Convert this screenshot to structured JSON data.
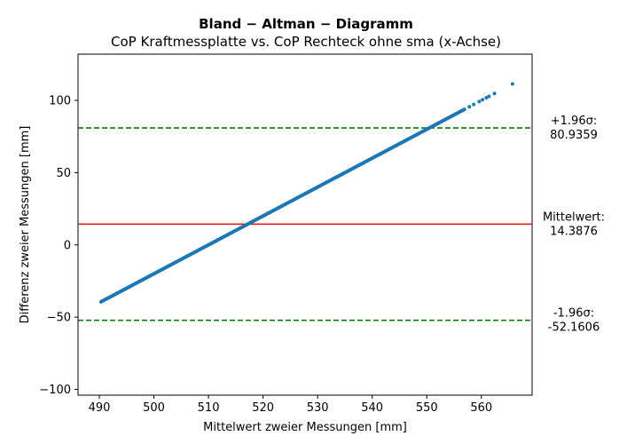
{
  "chart_data": {
    "type": "scatter",
    "title": "Bland − Altman − Diagramm",
    "subtitle": "CoP Kraftmessplatte vs. CoP Rechteck ohne sma (x-Achse)",
    "xlabel": "Mittelwert zweier Messungen [mm]",
    "ylabel": "Differenz zweier Messungen [mm]",
    "xlim": [
      486.1,
      569.3
    ],
    "ylim": [
      -104,
      132
    ],
    "xticks": [
      "490",
      "500",
      "510",
      "520",
      "530",
      "540",
      "550",
      "560"
    ],
    "yticks": [
      "100",
      "50",
      "0",
      "−50",
      "−100"
    ],
    "grid": false,
    "point_color": "#1f77b4",
    "series": [
      {
        "linear_fit": {
          "slope": 2.0,
          "x_at_zero_diff": 510.0
        },
        "x_range": [
          490.3,
          565.7
        ],
        "sparse_outliers": [
          [
            557.8,
            95.6
          ],
          [
            558.6,
            97.2
          ],
          [
            559.6,
            99.2
          ],
          [
            560.2,
            100.4
          ],
          [
            560.9,
            101.8
          ],
          [
            561.4,
            102.8
          ],
          [
            562.4,
            104.8
          ],
          [
            565.7,
            111.4
          ]
        ]
      }
    ],
    "reference_lines": [
      {
        "label": "+1.96σ:",
        "value_text": "80.9359",
        "value": 80.9359,
        "color": "#008000",
        "style": "dashed"
      },
      {
        "label": "Mittelwert:",
        "value_text": "14.3876",
        "value": 14.3876,
        "color": "#ff0000",
        "style": "solid"
      },
      {
        "label": "-1.96σ:",
        "value_text": "-52.1606",
        "value": -52.1606,
        "color": "#008000",
        "style": "dashed"
      }
    ]
  }
}
